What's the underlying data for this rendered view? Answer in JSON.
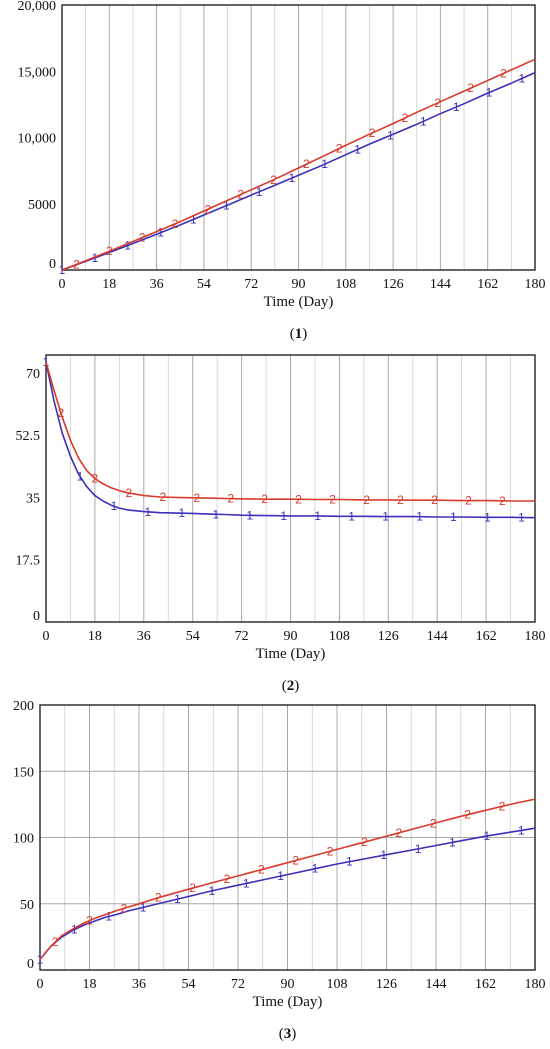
{
  "chart_data": [
    {
      "type": "line",
      "caption": "(1)",
      "xlabel": "Time (Day)",
      "ylabel": "",
      "xlim": [
        0,
        180
      ],
      "ylim": [
        0,
        20000
      ],
      "x_ticks": [
        0,
        18,
        36,
        54,
        72,
        90,
        108,
        126,
        144,
        162,
        180
      ],
      "y_ticks": [
        0,
        5000,
        10000,
        15000,
        20000
      ],
      "y_tick_labels": [
        "0",
        "5000",
        "10,000",
        "15,000",
        "20,000"
      ],
      "grid": "vertical",
      "x": [
        0,
        9,
        18,
        27,
        36,
        45,
        54,
        63,
        72,
        81,
        90,
        99,
        108,
        117,
        126,
        135,
        144,
        153,
        162,
        171,
        180
      ],
      "series": [
        {
          "name": "1",
          "color": "#3b30b8",
          "values": [
            0,
            650,
            1320,
            2000,
            2700,
            3400,
            4150,
            4900,
            5650,
            6400,
            7150,
            7900,
            8700,
            9500,
            10250,
            11000,
            11800,
            12550,
            13350,
            14100,
            14900
          ]
        },
        {
          "name": "2",
          "color": "#d83a2c",
          "values": [
            0,
            700,
            1420,
            2150,
            2900,
            3650,
            4450,
            5250,
            6050,
            6850,
            7700,
            8550,
            9400,
            10250,
            11050,
            11900,
            12700,
            13500,
            14300,
            15100,
            15900
          ]
        }
      ]
    },
    {
      "type": "line",
      "caption": "(2)",
      "xlabel": "Time (Day)",
      "ylabel": "",
      "xlim": [
        0,
        180
      ],
      "ylim": [
        0,
        75
      ],
      "x_ticks": [
        0,
        18,
        36,
        54,
        72,
        90,
        108,
        126,
        144,
        162,
        180
      ],
      "y_ticks": [
        0,
        17.5,
        35,
        52.5,
        70
      ],
      "y_tick_labels": [
        "0",
        "17.5",
        "35",
        "52.5",
        "70"
      ],
      "grid": "vertical",
      "x": [
        0,
        3,
        6,
        9,
        12,
        15,
        18,
        21,
        24,
        27,
        30,
        36,
        42,
        48,
        54,
        60,
        66,
        72,
        81,
        90,
        99,
        108,
        117,
        126,
        135,
        144,
        153,
        162,
        171,
        180
      ],
      "series": [
        {
          "name": "1",
          "color": "#3b30b8",
          "values": [
            73,
            62,
            53,
            46.5,
            41.5,
            38,
            35.5,
            34,
            32.8,
            32,
            31.5,
            31,
            30.7,
            30.6,
            30.5,
            30.3,
            30.2,
            30,
            29.9,
            29.8,
            29.8,
            29.7,
            29.7,
            29.6,
            29.6,
            29.5,
            29.5,
            29.4,
            29.4,
            29.3
          ]
        },
        {
          "name": "2",
          "color": "#d83a2c",
          "values": [
            73,
            65,
            57.5,
            51,
            46,
            42.5,
            40.3,
            38.8,
            37.7,
            36.9,
            36.3,
            35.5,
            35.1,
            35,
            34.9,
            34.8,
            34.7,
            34.6,
            34.5,
            34.5,
            34.4,
            34.4,
            34.3,
            34.3,
            34.2,
            34.2,
            34.1,
            34.1,
            34,
            34
          ]
        }
      ]
    },
    {
      "type": "line",
      "caption": "(3)",
      "xlabel": "Time (Day)",
      "ylabel": "",
      "xlim": [
        0,
        180
      ],
      "ylim": [
        0,
        200
      ],
      "x_ticks": [
        0,
        18,
        36,
        54,
        72,
        90,
        108,
        126,
        144,
        162,
        180
      ],
      "y_ticks": [
        0,
        50,
        100,
        150,
        200
      ],
      "y_tick_labels": [
        "0",
        "50",
        "100",
        "150",
        "200"
      ],
      "grid": "both",
      "x": [
        0,
        4,
        8,
        12,
        16,
        20,
        24,
        28,
        32,
        36,
        42,
        48,
        54,
        63,
        72,
        81,
        90,
        99,
        108,
        117,
        126,
        135,
        144,
        153,
        162,
        171,
        180
      ],
      "series": [
        {
          "name": "1",
          "color": "#3b30b8",
          "values": [
            8,
            18,
            25,
            30,
            34,
            37,
            40,
            42,
            44.5,
            46.5,
            49.5,
            52.5,
            55.5,
            60,
            64,
            68,
            72,
            76,
            80,
            83.5,
            87,
            90.5,
            94,
            97.5,
            101,
            104,
            107
          ]
        },
        {
          "name": "2",
          "color": "#d83a2c",
          "values": [
            8,
            18,
            26,
            31,
            35.5,
            39,
            42,
            45,
            47.5,
            50,
            54,
            57.5,
            61,
            66,
            71,
            76,
            81,
            86,
            91,
            96,
            101,
            106,
            111,
            116,
            120.5,
            125,
            129
          ]
        }
      ]
    }
  ]
}
